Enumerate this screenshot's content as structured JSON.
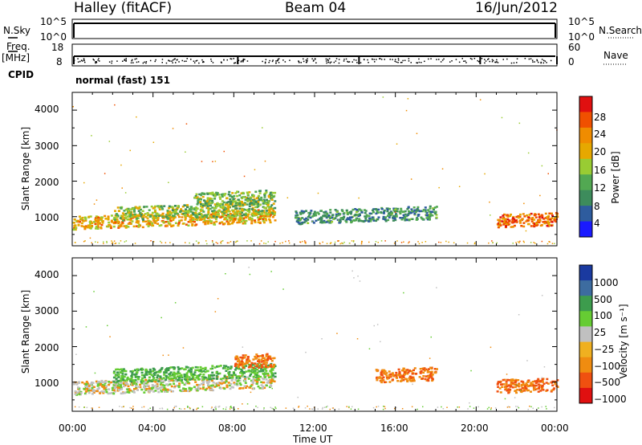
{
  "header": {
    "station": "Halley (fitACF)",
    "beam": "Beam 04",
    "date": "16/Jun/2012"
  },
  "left_labels": {
    "nsky": "N.Sky",
    "freq": "Freq.",
    "mhz": "[MHz]",
    "cpid": "CPID"
  },
  "right_labels": {
    "nsearch": "N.Search",
    "nave": "Nave"
  },
  "noise_ticks": {
    "top": "10^5",
    "bottom": "10^0"
  },
  "freq_ticks": {
    "left_top": "18",
    "left_bottom": "8",
    "right_top": "60",
    "right_bottom": "0"
  },
  "cpid_text": "normal (fast) 151",
  "colors": {
    "power_scale": [
      "#1a1aff",
      "#2e5c9e",
      "#3d8c5c",
      "#52a852",
      "#99cc33",
      "#e6a800",
      "#f08c00",
      "#f05000",
      "#e01010"
    ],
    "velocity_scale": [
      "#e01010",
      "#f05010",
      "#f08c10",
      "#f0b020",
      "#c0c0c0",
      "#66cc33",
      "#3d9c4d",
      "#3d6ca0",
      "#1a3aa0"
    ]
  },
  "chart_data": [
    {
      "type": "heatmap",
      "panel": "power",
      "xlabel": "Time UT",
      "ylabel": "Slant Range [km]",
      "x_ticks": [
        "00:00",
        "04:00",
        "08:00",
        "12:00",
        "16:00",
        "20:00",
        "00:00"
      ],
      "y_ticks": [
        "1000",
        "2000",
        "3000",
        "4000"
      ],
      "xlim_hours": [
        0,
        24
      ],
      "ylim_km": [
        180,
        4500
      ],
      "colorbar_label": "Power [dB]",
      "colorbar_ticks": [
        "4",
        "8",
        "12",
        "16",
        "20",
        "24",
        "28"
      ],
      "colorbar_range": [
        0,
        30
      ],
      "features": [
        {
          "t_start": 0,
          "t_end": 10,
          "range_km": 850,
          "value": 20
        },
        {
          "t_start": 2,
          "t_end": 10,
          "range_km": 1100,
          "value": 14
        },
        {
          "t_start": 6,
          "t_end": 10,
          "range_km": 1500,
          "value": 12
        },
        {
          "t_start": 11,
          "t_end": 18,
          "range_km": 1000,
          "value": 8
        },
        {
          "t_start": 21,
          "t_end": 24,
          "range_km": 900,
          "value": 24
        }
      ]
    },
    {
      "type": "heatmap",
      "panel": "velocity",
      "xlabel": "Time UT",
      "ylabel": "Slant Range [km]",
      "x_ticks": [
        "00:00",
        "04:00",
        "08:00",
        "12:00",
        "16:00",
        "20:00",
        "00:00"
      ],
      "y_ticks": [
        "1000",
        "2000",
        "3000",
        "4000"
      ],
      "xlim_hours": [
        0,
        24
      ],
      "ylim_km": [
        180,
        4500
      ],
      "colorbar_label": "Velocity [m s⁻¹]",
      "colorbar_ticks": [
        "1000",
        "500",
        "100",
        "25",
        "−25",
        "−100",
        "−500",
        "−1000"
      ],
      "features": [
        {
          "t_start": 0,
          "t_end": 10,
          "range_km": 850,
          "value": 0
        },
        {
          "t_start": 2,
          "t_end": 10,
          "range_km": 1200,
          "value": 100
        },
        {
          "t_start": 8,
          "t_end": 10,
          "range_km": 1600,
          "value": -100
        },
        {
          "t_start": 15,
          "t_end": 18,
          "range_km": 1200,
          "value": -100
        },
        {
          "t_start": 21,
          "t_end": 24,
          "range_km": 900,
          "value": -100
        }
      ]
    }
  ]
}
